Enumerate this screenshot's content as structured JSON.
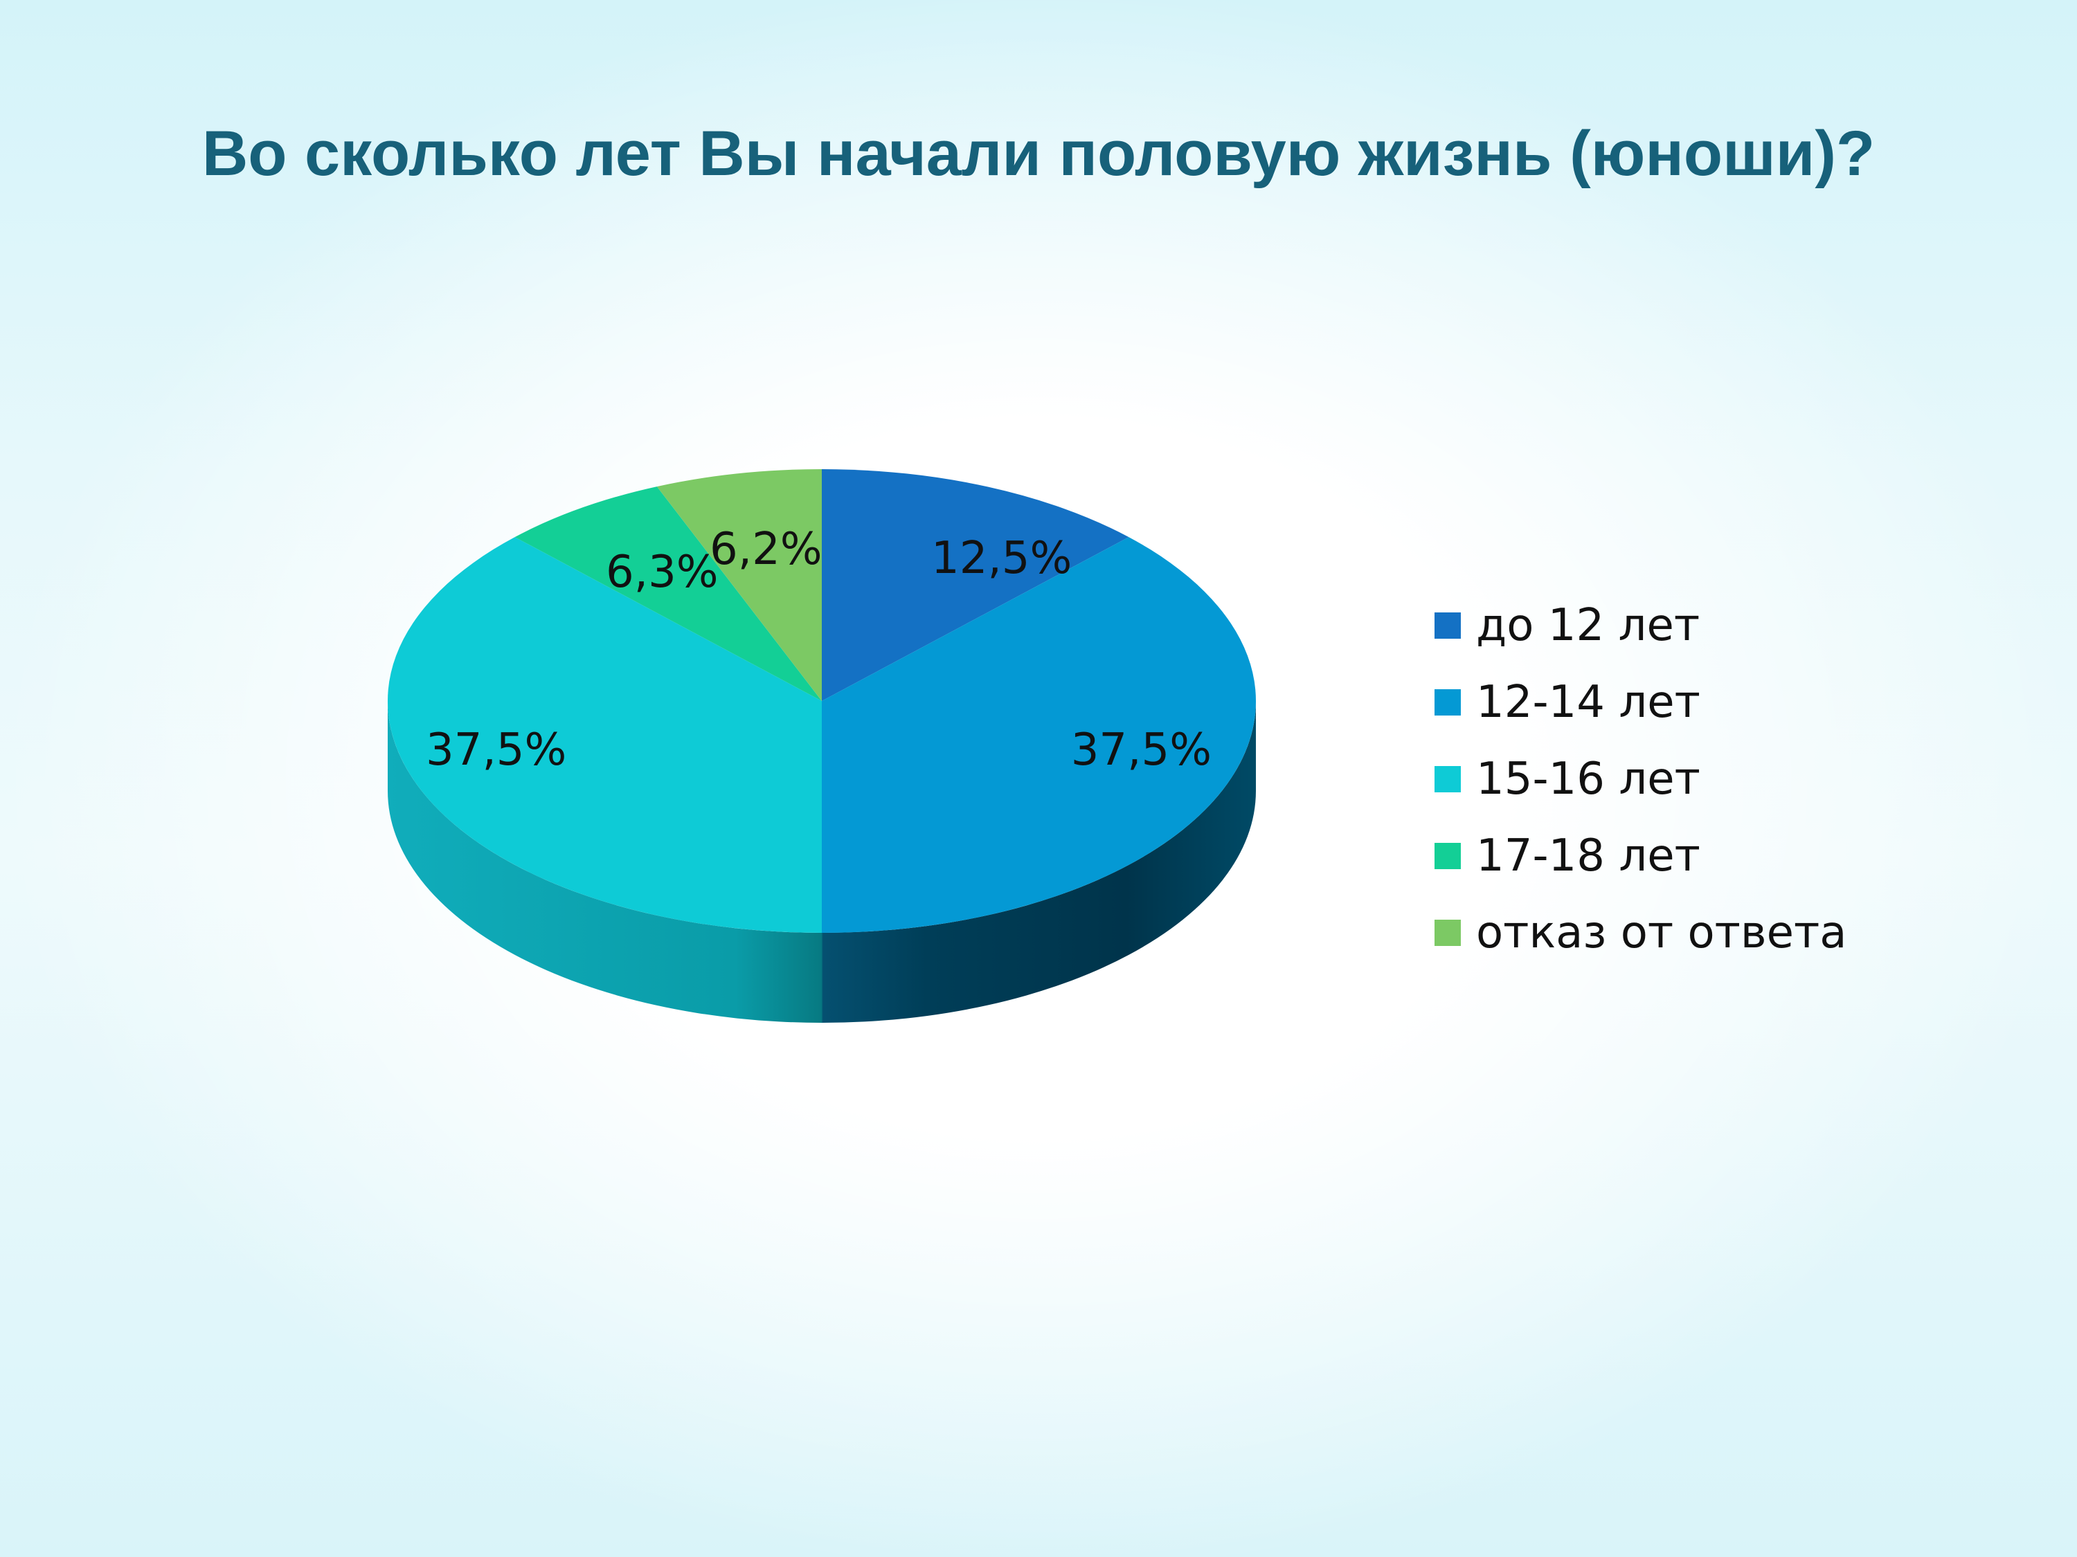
{
  "slide": {
    "title": "Во сколько лет Вы начали половую жизнь (юноши)?"
  },
  "chart_data": {
    "type": "pie",
    "style": "3d",
    "title": "Во сколько лет Вы начали половую жизнь (юноши)?",
    "legend_position": "right",
    "categories": [
      "до 12 лет",
      "12-14 лет",
      "15-16 лет",
      "17-18 лет",
      "отказ от ответа"
    ],
    "values": [
      12.5,
      37.5,
      37.5,
      6.3,
      6.2
    ],
    "labels": [
      "12,5%",
      "37,5%",
      "37,5%",
      "6,3%",
      "6,2%"
    ],
    "colors": [
      "#1471c4",
      "#0499d4",
      "#0ecbd6",
      "#13cf96",
      "#7cc964"
    ],
    "side_colors": [
      "#0d4a80",
      "#013a52",
      "#0aa3ab",
      "#0d9a70",
      "#5c9a49"
    ]
  }
}
